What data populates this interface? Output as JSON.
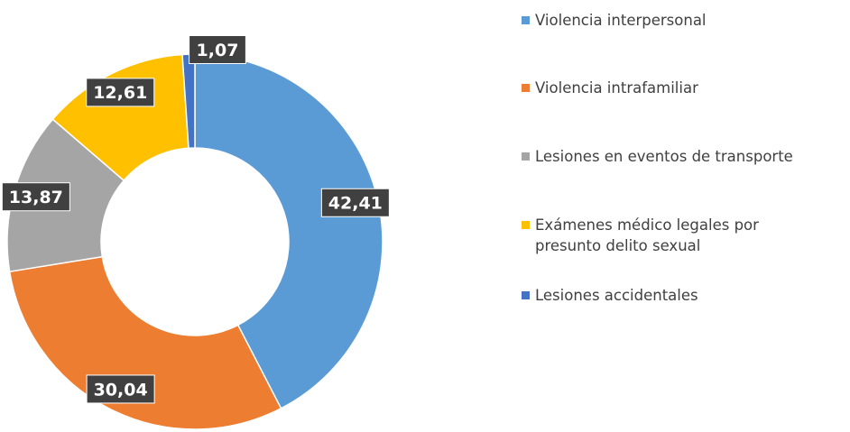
{
  "chart_data": {
    "type": "pie",
    "donut": true,
    "title": "",
    "legend_position": "right",
    "slices": [
      {
        "label": "Violencia interpersonal",
        "value": 42.41,
        "value_label": "42,41",
        "color": "#5B9BD5"
      },
      {
        "label": "Violencia intrafamiliar",
        "value": 30.04,
        "value_label": "30,04",
        "color": "#ED7D31"
      },
      {
        "label": "Lesiones en eventos de transporte",
        "value": 13.87,
        "value_label": "13,87",
        "color": "#A5A5A5"
      },
      {
        "label": "Exámenes médico legales por presunto delito sexual",
        "value": 12.61,
        "value_label": "12,61",
        "color": "#FFC000"
      },
      {
        "label": "Lesiones accidentales",
        "value": 1.07,
        "value_label": "1,07",
        "color": "#4472C4"
      }
    ],
    "data_label_background": "#404040",
    "data_label_color": "#ffffff"
  }
}
